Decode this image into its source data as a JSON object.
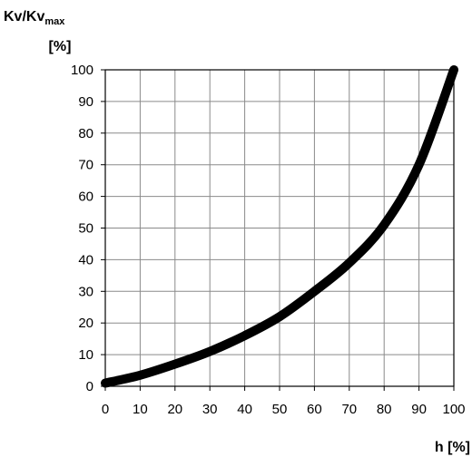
{
  "chart_data": {
    "type": "line",
    "title": "",
    "ylabel": {
      "line1_main": "Kv/Kv",
      "line1_sub": "max",
      "line2": "[%]"
    },
    "xlabel": "h [%]",
    "xlim": [
      0,
      100
    ],
    "ylim": [
      0,
      100
    ],
    "x_ticks": [
      0,
      10,
      20,
      30,
      40,
      50,
      60,
      70,
      80,
      90,
      100
    ],
    "y_ticks": [
      0,
      10,
      20,
      30,
      40,
      50,
      60,
      70,
      80,
      90,
      100
    ],
    "grid": true,
    "series": [
      {
        "x": [
          0,
          10,
          20,
          30,
          40,
          50,
          60,
          70,
          80,
          90,
          100
        ],
        "values": [
          1,
          3.5,
          7,
          11,
          16,
          22,
          30,
          39,
          51,
          70,
          100
        ]
      }
    ]
  }
}
